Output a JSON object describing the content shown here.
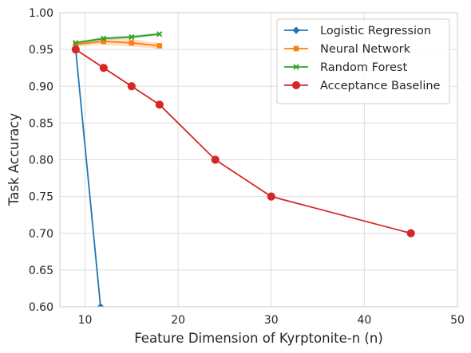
{
  "chart_data": {
    "type": "line",
    "xlabel": "Feature Dimension of Kyrptonite-n (n)",
    "ylabel": "Task Accuracy",
    "xlim": [
      7.3,
      50
    ],
    "ylim": [
      0.6,
      1.0
    ],
    "xticks": [
      10,
      20,
      30,
      40,
      50
    ],
    "yticks": [
      0.6,
      0.65,
      0.7,
      0.75,
      0.8,
      0.85,
      0.9,
      0.95,
      1.0
    ],
    "grid": true,
    "legend_position": "top-right",
    "series": [
      {
        "name": "Logistic Regression",
        "color": "#1f77b4",
        "marker": "diamond",
        "x": [
          9,
          11.67
        ],
        "y": [
          0.95,
          0.6
        ],
        "band_lower": [
          0.95,
          0.6
        ],
        "band_upper": [
          0.95,
          0.6
        ]
      },
      {
        "name": "Neural Network",
        "color": "#ff7f0e",
        "marker": "square",
        "x": [
          9,
          12,
          15,
          18
        ],
        "y": [
          0.957,
          0.961,
          0.959,
          0.955
        ],
        "band_lower": [
          0.954,
          0.956,
          0.954,
          0.951
        ],
        "band_upper": [
          0.96,
          0.966,
          0.964,
          0.959
        ]
      },
      {
        "name": "Random Forest",
        "color": "#2ca02c",
        "marker": "x",
        "x": [
          9,
          12,
          15,
          18
        ],
        "y": [
          0.959,
          0.965,
          0.967,
          0.971
        ],
        "band_lower": [
          0.957,
          0.963,
          0.965,
          0.969
        ],
        "band_upper": [
          0.961,
          0.967,
          0.969,
          0.973
        ]
      },
      {
        "name": "Acceptance Baseline",
        "color": "#d62728",
        "marker": "circle",
        "x": [
          9,
          12,
          15,
          18,
          24,
          30,
          45
        ],
        "y": [
          0.95,
          0.925,
          0.9,
          0.875,
          0.8,
          0.75,
          0.7
        ]
      }
    ]
  }
}
